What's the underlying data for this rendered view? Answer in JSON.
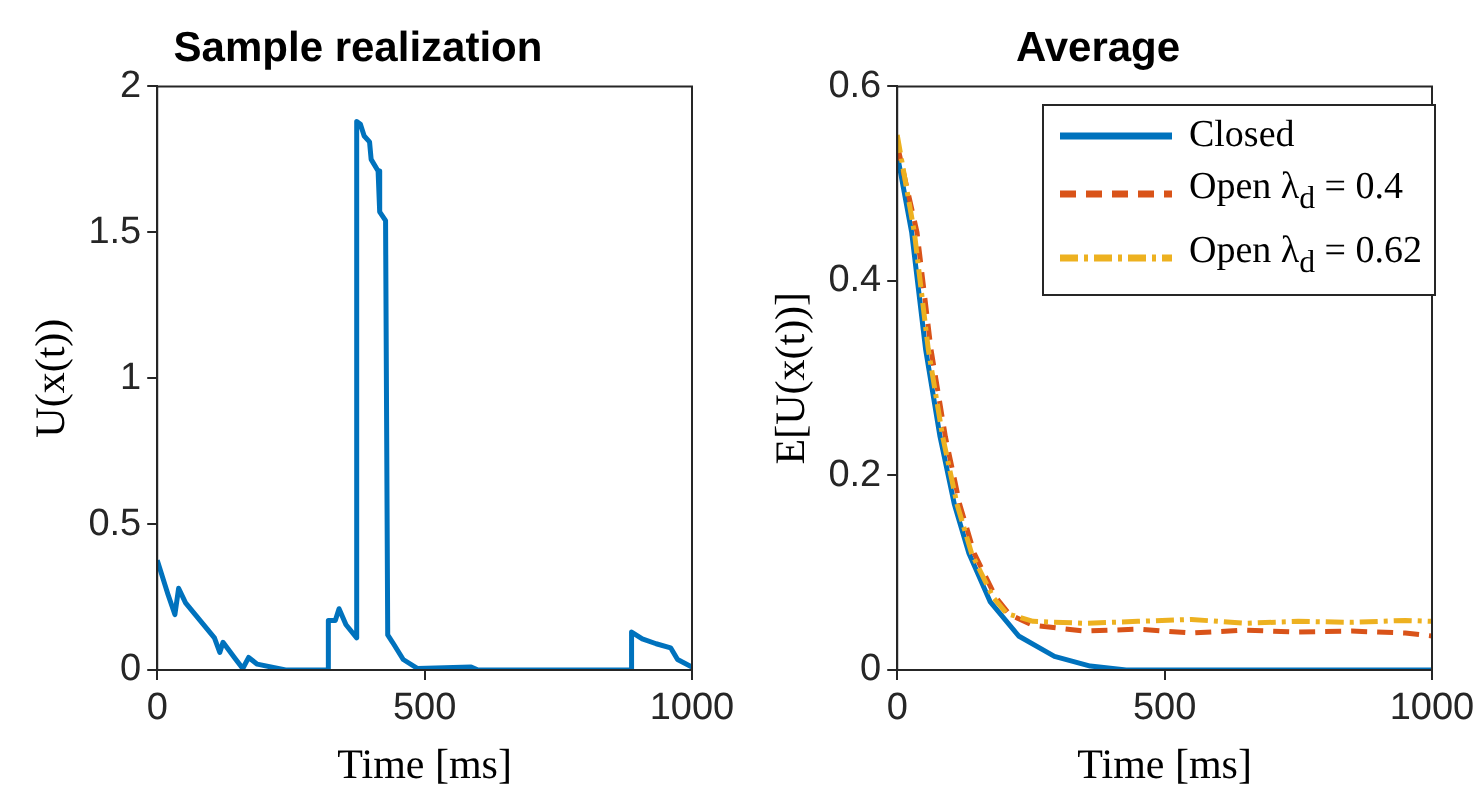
{
  "chart_data": [
    {
      "type": "line",
      "title": "Sample realization",
      "xlabel": "Time [ms]",
      "ylabel": "U(x(t))",
      "xlim": [
        0,
        1000
      ],
      "xticks": [
        0,
        500,
        1000
      ],
      "ylim": [
        0,
        2
      ],
      "yticks": [
        0,
        0.5,
        1,
        1.5,
        2
      ],
      "grid": false,
      "legend": false,
      "series": [
        {
          "color": "#0072bd",
          "line_style": "solid",
          "x": [
            0,
            20,
            33,
            40,
            53,
            80,
            107,
            117,
            123,
            147,
            160,
            171,
            187,
            240,
            320,
            320,
            333,
            340,
            353,
            373,
            373,
            380,
            387,
            397,
            400,
            413,
            416,
            427,
            431,
            440,
            460,
            487,
            587,
            600,
            887,
            887,
            907,
            933,
            960,
            973,
            1000
          ],
          "values": [
            0.376,
            0.26,
            0.19,
            0.28,
            0.23,
            0.17,
            0.11,
            0.06,
            0.095,
            0.036,
            0.005,
            0.043,
            0.02,
            0,
            0,
            0.17,
            0.17,
            0.21,
            0.155,
            0.11,
            1.88,
            1.87,
            1.83,
            1.81,
            1.75,
            1.71,
            1.57,
            1.54,
            0.12,
            0.095,
            0.036,
            0.005,
            0.01,
            0,
            0,
            0.13,
            0.107,
            0.09,
            0.076,
            0.036,
            0.01
          ]
        }
      ]
    },
    {
      "type": "line",
      "title": "Average",
      "xlabel": "Time [ms]",
      "ylabel": "E[U(x(t))]",
      "xlim": [
        0,
        1000
      ],
      "xticks": [
        0,
        500,
        1000
      ],
      "ylim": [
        0,
        0.6
      ],
      "yticks": [
        0,
        0.2,
        0.4,
        0.6
      ],
      "grid": false,
      "legend": "top right",
      "series": [
        {
          "name": "Closed",
          "color": "#0072bd",
          "line_style": "solid",
          "x": [
            0,
            27,
            53,
            80,
            107,
            134,
            174,
            227,
            294,
            361,
            428,
            1000
          ],
          "values": [
            0.53,
            0.45,
            0.33,
            0.24,
            0.17,
            0.12,
            0.07,
            0.035,
            0.014,
            0.004,
            0,
            0
          ]
        },
        {
          "name": "Open λ$_{d}$ = 0.4",
          "color": "#d95319",
          "line_style": "dashed",
          "x": [
            0,
            37,
            63,
            90,
            117,
            144,
            184,
            210,
            254,
            350,
            450,
            550,
            650,
            750,
            850,
            950,
            1000
          ],
          "values": [
            0.54,
            0.45,
            0.33,
            0.24,
            0.17,
            0.12,
            0.075,
            0.057,
            0.046,
            0.04,
            0.042,
            0.038,
            0.041,
            0.039,
            0.04,
            0.038,
            0.035
          ]
        },
        {
          "name": "Open λ$_{d}$ = 0.62",
          "color": "#edb120",
          "line_style": "dotted",
          "x": [
            0,
            32,
            58,
            85,
            112,
            139,
            179,
            205,
            254,
            350,
            450,
            550,
            650,
            750,
            850,
            950,
            1000
          ],
          "values": [
            0.55,
            0.45,
            0.33,
            0.24,
            0.17,
            0.12,
            0.075,
            0.058,
            0.05,
            0.048,
            0.05,
            0.052,
            0.048,
            0.05,
            0.049,
            0.051,
            0.05
          ]
        }
      ]
    }
  ]
}
